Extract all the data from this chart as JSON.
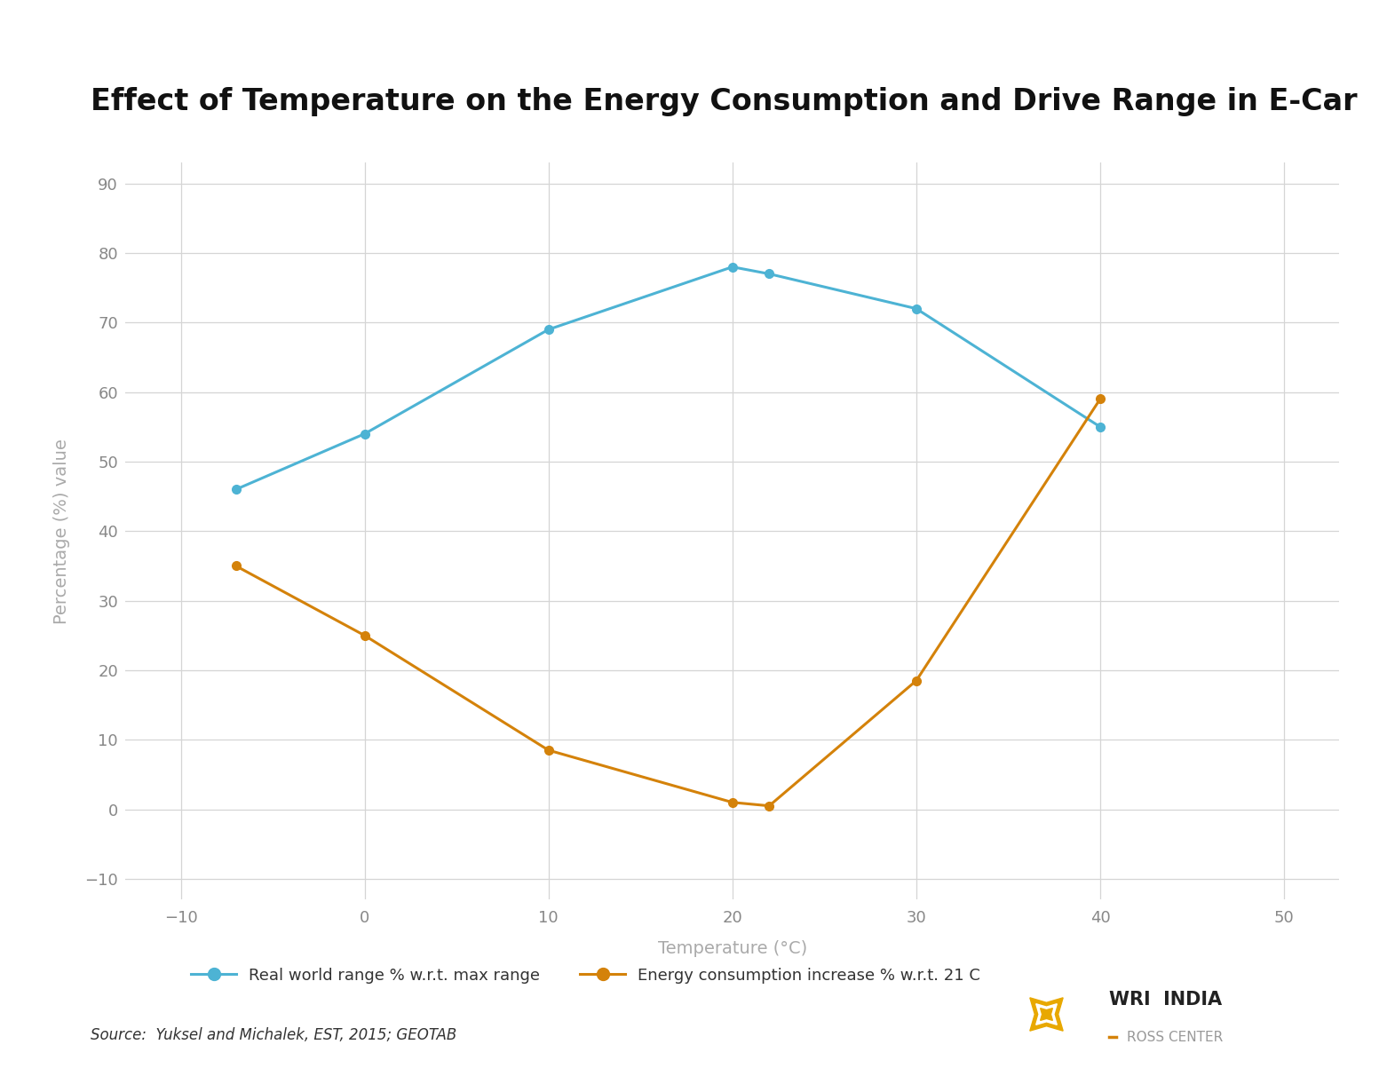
{
  "title": "Effect of Temperature on the Energy Consumption and Drive Range in E-Car",
  "xlabel": "Temperature (°C)",
  "ylabel": "Percentage (%) value",
  "xlim": [
    -13,
    53
  ],
  "ylim": [
    -13,
    93
  ],
  "xticks": [
    -10,
    0,
    10,
    20,
    30,
    40,
    50
  ],
  "yticks": [
    -10,
    0,
    10,
    20,
    30,
    40,
    50,
    60,
    70,
    80,
    90
  ],
  "blue_x": [
    -7,
    0,
    10,
    20,
    22,
    30,
    40
  ],
  "blue_y": [
    46,
    54,
    69,
    78,
    77,
    72,
    55
  ],
  "orange_x": [
    -7,
    0,
    10,
    20,
    22,
    30,
    40
  ],
  "orange_y": [
    35,
    25,
    8.5,
    1,
    0.5,
    18.5,
    59
  ],
  "blue_color": "#4db3d4",
  "orange_color": "#d4820a",
  "blue_label": "Real world range % w.r.t. max range",
  "orange_label": "Energy consumption increase % w.r.t. 21 C",
  "source_text": "Source:  Yuksel and Michalek, EST, 2015; GEOTAB",
  "title_fontsize": 24,
  "axis_label_fontsize": 14,
  "tick_fontsize": 13,
  "legend_fontsize": 13,
  "source_fontsize": 12,
  "grid_color": "#d5d5d5",
  "background_color": "#ffffff",
  "marker": "o",
  "markersize": 7,
  "linewidth": 2.2,
  "wri_india_text": "WRI  INDIA",
  "ross_center_text": "— ROSS CENTER",
  "wri_color": "#222222",
  "ross_color": "#999999"
}
